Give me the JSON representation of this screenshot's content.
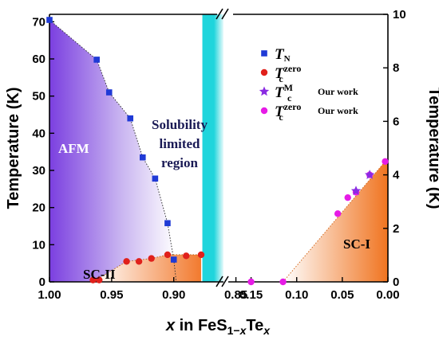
{
  "chart_data": {
    "type": "scatter",
    "xlabel": {
      "italic_x": "x",
      "text": " in FeS",
      "sub1": "1−",
      "sub2": "x",
      "text2": "Te",
      "sub3": "x"
    },
    "ylabel_left": "Temperature (K)",
    "ylabel_right": "Temperature (K)",
    "left_panel": {
      "xlim": [
        1.0,
        0.86
      ],
      "ylim": [
        0,
        72
      ],
      "xticks": [
        "1.00",
        "0.95",
        "0.90",
        "0.85"
      ],
      "yticks": [
        "0",
        "10",
        "20",
        "30",
        "40",
        "50",
        "60",
        "70"
      ],
      "regions": {
        "afm": "AFM",
        "scii": "SC-II",
        "solubility": "Solubility limited region"
      },
      "series": [
        {
          "name": "TN",
          "marker": "square",
          "color": "#1f3ad6",
          "points": [
            [
              1.0,
              70.5
            ],
            [
              0.962,
              59.8
            ],
            [
              0.952,
              51.0
            ],
            [
              0.935,
              44.0
            ],
            [
              0.925,
              33.5
            ],
            [
              0.915,
              27.8
            ],
            [
              0.905,
              15.8
            ],
            [
              0.9,
              6.0
            ]
          ]
        },
        {
          "name": "Tc zero",
          "marker": "circle",
          "color": "#e0201b",
          "points": [
            [
              0.965,
              0.5
            ],
            [
              0.96,
              0.5
            ],
            [
              0.938,
              5.5
            ],
            [
              0.928,
              5.5
            ],
            [
              0.918,
              6.3
            ],
            [
              0.905,
              7.3
            ],
            [
              0.89,
              7.0
            ],
            [
              0.878,
              7.3
            ]
          ]
        }
      ]
    },
    "right_panel": {
      "xlim": [
        0.175,
        0.0
      ],
      "ylim": [
        0,
        10
      ],
      "xticks": [
        "0.15",
        "0.10",
        "0.05",
        "0.00"
      ],
      "yticks": [
        "0",
        "2",
        "4",
        "6",
        "8",
        "10"
      ],
      "regions": {
        "sci": "SC-I"
      },
      "series": [
        {
          "name": "Tc M Our work",
          "marker": "star",
          "color": "#8a2be2",
          "points": [
            [
              0.035,
              3.4
            ],
            [
              0.02,
              4.0
            ]
          ]
        },
        {
          "name": "Tc zero Our work",
          "marker": "circle",
          "color": "#e61be6",
          "points": [
            [
              0.15,
              0.0
            ],
            [
              0.115,
              0.0
            ],
            [
              0.055,
              2.55
            ],
            [
              0.044,
              3.15
            ],
            [
              0.035,
              3.35
            ],
            [
              0.02,
              4.0
            ],
            [
              0.003,
              4.5
            ]
          ]
        }
      ]
    },
    "legend": {
      "placement": "top-right",
      "items": [
        {
          "main": "T",
          "sub": "N",
          "sup": "",
          "note": ""
        },
        {
          "main": "T",
          "sub": "c",
          "sup": "zero",
          "note": ""
        },
        {
          "main": "T",
          "sub": "c",
          "sup": "M",
          "note": "Our work"
        },
        {
          "main": "T",
          "sub": "c",
          "sup": "zero",
          "note": "Our work"
        }
      ]
    }
  }
}
